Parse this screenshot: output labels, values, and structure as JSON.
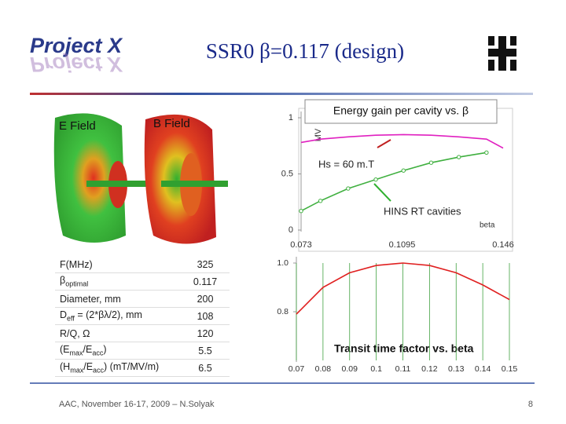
{
  "header": {
    "logo": "Project X",
    "title": "SSR0 β=0.117 (design)"
  },
  "field_images": {
    "e_label": "E Field",
    "b_label": "B Field"
  },
  "chart_data": [
    {
      "type": "line",
      "title": "Energy gain per cavity vs. β",
      "y_label": "MV",
      "x_label": "beta",
      "xlim": [
        0.073,
        0.146
      ],
      "xticks": [
        0.073,
        0.1095,
        0.146
      ],
      "ylim": [
        0,
        1
      ],
      "yticks": [
        0,
        0.5,
        1
      ],
      "annotations": [
        "Hs = 60 m.T",
        "HINS RT cavities"
      ],
      "series": [
        {
          "color": "#e020c0",
          "markers": false,
          "x": [
            0.073,
            0.08,
            0.09,
            0.1,
            0.11,
            0.12,
            0.13,
            0.14,
            0.146
          ],
          "values": [
            0.78,
            0.81,
            0.83,
            0.845,
            0.85,
            0.845,
            0.83,
            0.81,
            0.73
          ]
        },
        {
          "color": "#40b040",
          "markers": true,
          "x": [
            0.073,
            0.08,
            0.09,
            0.1,
            0.11,
            0.12,
            0.13,
            0.14
          ],
          "values": [
            0.17,
            0.26,
            0.37,
            0.45,
            0.53,
            0.6,
            0.65,
            0.69
          ]
        }
      ]
    },
    {
      "type": "line",
      "title": "Transit time factor vs. beta",
      "xlim": [
        0.07,
        0.15
      ],
      "xticks": [
        0.07,
        0.08,
        0.09,
        0.1,
        0.11,
        0.12,
        0.13,
        0.14,
        0.15
      ],
      "ylim": [
        0.6,
        1.0
      ],
      "yticks": [
        0.8,
        {
          "value": 1,
          "label": "1.0"
        }
      ],
      "grid": "x",
      "series": [
        {
          "color": "#e02020",
          "markers": false,
          "x": [
            0.07,
            0.08,
            0.09,
            0.1,
            0.11,
            0.12,
            0.13,
            0.14,
            0.15
          ],
          "values": [
            0.79,
            0.9,
            0.96,
            0.99,
            1.0,
            0.99,
            0.96,
            0.91,
            0.85
          ]
        }
      ]
    }
  ],
  "table": {
    "rows": [
      {
        "label": [
          {
            "text": "F(MHz)"
          }
        ],
        "value": "325"
      },
      {
        "label": [
          {
            "text": "β"
          },
          {
            "sub": "optimal"
          }
        ],
        "value": "0.117"
      },
      {
        "label": [
          {
            "text": "Diameter,  mm"
          }
        ],
        "value": "200"
      },
      {
        "label": [
          {
            "text": "D"
          },
          {
            "sub": "eff"
          },
          {
            "text": " = (2*βλ/2), mm"
          }
        ],
        "value": "108"
      },
      {
        "label": [
          {
            "text": "R/Q, Ω"
          }
        ],
        "value": "120"
      },
      {
        "label": [
          {
            "text": "(E"
          },
          {
            "sub": "max"
          },
          {
            "text": "/E"
          },
          {
            "sub": "acc"
          },
          {
            "text": ")"
          }
        ],
        "value": "5.5"
      },
      {
        "label": [
          {
            "text": "(H"
          },
          {
            "sub": "max"
          },
          {
            "text": "/E"
          },
          {
            "sub": "acc"
          },
          {
            "text": ") (mT/MV/m)"
          }
        ],
        "value": "6.5"
      }
    ]
  },
  "footer": {
    "text": "AAC, November 16-17, 2009 – N.Solyak",
    "page": "8"
  }
}
